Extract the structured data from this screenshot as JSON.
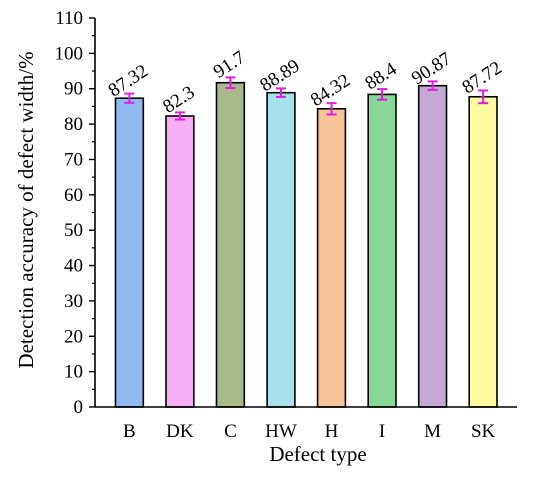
{
  "chart_data": {
    "type": "bar",
    "title": "",
    "xlabel": "Defect type",
    "ylabel": "Detection accuracy of defect width/%",
    "ylim": [
      0,
      110
    ],
    "yticks": [
      0,
      10,
      20,
      30,
      40,
      50,
      60,
      70,
      80,
      90,
      100,
      110
    ],
    "grid": false,
    "legend": "none",
    "categories": [
      "B",
      "DK",
      "C",
      "HW",
      "H",
      "I",
      "M",
      "SK"
    ],
    "values": [
      87.32,
      82.3,
      91.7,
      88.89,
      84.32,
      88.4,
      90.87,
      87.72
    ],
    "value_labels": [
      "87.32",
      "82.3",
      "91.7",
      "88.89",
      "84.32",
      "88.4",
      "90.87",
      "87.72"
    ],
    "error": [
      1.3,
      1.0,
      1.5,
      1.2,
      1.6,
      1.5,
      1.2,
      1.8
    ],
    "colors": [
      "#8fbaf2",
      "#f8aef4",
      "#aab98a",
      "#a7e2ea",
      "#f8c497",
      "#86d896",
      "#c4a8d6",
      "#fdfb9e"
    ],
    "error_color": "#e21be2"
  }
}
